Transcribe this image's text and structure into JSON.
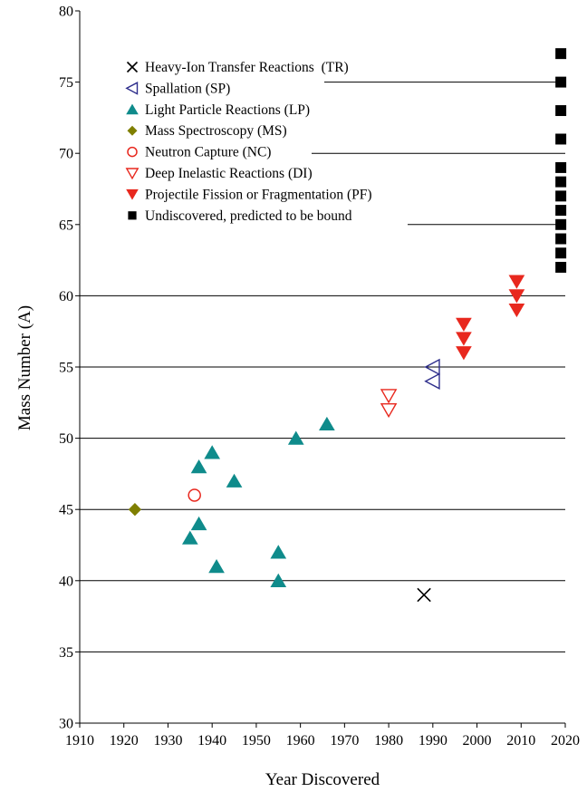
{
  "chart_data": {
    "type": "scatter",
    "title": "",
    "xlabel": "Year Discovered",
    "ylabel": "Mass Number (A)",
    "xlim": [
      1910,
      2020
    ],
    "ylim": [
      30,
      80
    ],
    "x_ticks": [
      "1910",
      "1920",
      "1930",
      "1940",
      "1950",
      "1960",
      "1970",
      "1980",
      "1990",
      "2000",
      "2010",
      "2020"
    ],
    "y_ticks": [
      "30",
      "35",
      "40",
      "45",
      "50",
      "55",
      "60",
      "65",
      "70",
      "75",
      "80"
    ],
    "grid": "horizontal",
    "legend_position": "top-left",
    "series": [
      {
        "name": "Heavy-Ion Transfer Reactions  (TR)",
        "marker": "x",
        "color": "#000000",
        "points": [
          [
            1988,
            39
          ]
        ]
      },
      {
        "name": "Spallation (SP)",
        "marker": "triangle-left-open",
        "color": "#2e2e8c",
        "points": [
          [
            1990,
            55
          ],
          [
            1990,
            54
          ]
        ]
      },
      {
        "name": "Light Particle Reactions (LP)",
        "marker": "triangle-up",
        "color": "#0f8b8b",
        "points": [
          [
            1935,
            43
          ],
          [
            1937,
            48
          ],
          [
            1937,
            44
          ],
          [
            1940,
            49
          ],
          [
            1941,
            41
          ],
          [
            1945,
            47
          ],
          [
            1955,
            42
          ],
          [
            1955,
            40
          ],
          [
            1959,
            50
          ],
          [
            1966,
            51
          ]
        ]
      },
      {
        "name": "Mass Spectroscopy (MS)",
        "marker": "diamond",
        "color": "#7f7f00",
        "points": [
          [
            1922.5,
            45
          ]
        ]
      },
      {
        "name": "Neutron Capture (NC)",
        "marker": "circle-open",
        "color": "#e8281e",
        "points": [
          [
            1936,
            46
          ]
        ]
      },
      {
        "name": "Deep Inelastic Reactions (DI)",
        "marker": "triangle-down-open",
        "color": "#e8281e",
        "points": [
          [
            1980,
            53
          ],
          [
            1980,
            52
          ]
        ]
      },
      {
        "name": "Projectile Fission or Fragmentation (PF)",
        "marker": "triangle-down",
        "color": "#e8281e",
        "points": [
          [
            1997,
            58
          ],
          [
            1997,
            57
          ],
          [
            1997,
            56
          ],
          [
            2009,
            61
          ],
          [
            2009,
            60
          ],
          [
            2009,
            59
          ]
        ]
      },
      {
        "name": "Undiscovered, predicted to be bound",
        "marker": "square",
        "color": "#000000",
        "points": [
          [
            2019,
            77
          ],
          [
            2019,
            75
          ],
          [
            2019,
            73
          ],
          [
            2019,
            71
          ],
          [
            2019,
            69
          ],
          [
            2019,
            68
          ],
          [
            2019,
            67
          ],
          [
            2019,
            66
          ],
          [
            2019,
            65
          ],
          [
            2019,
            64
          ],
          [
            2019,
            63
          ],
          [
            2019,
            62
          ]
        ]
      }
    ]
  }
}
